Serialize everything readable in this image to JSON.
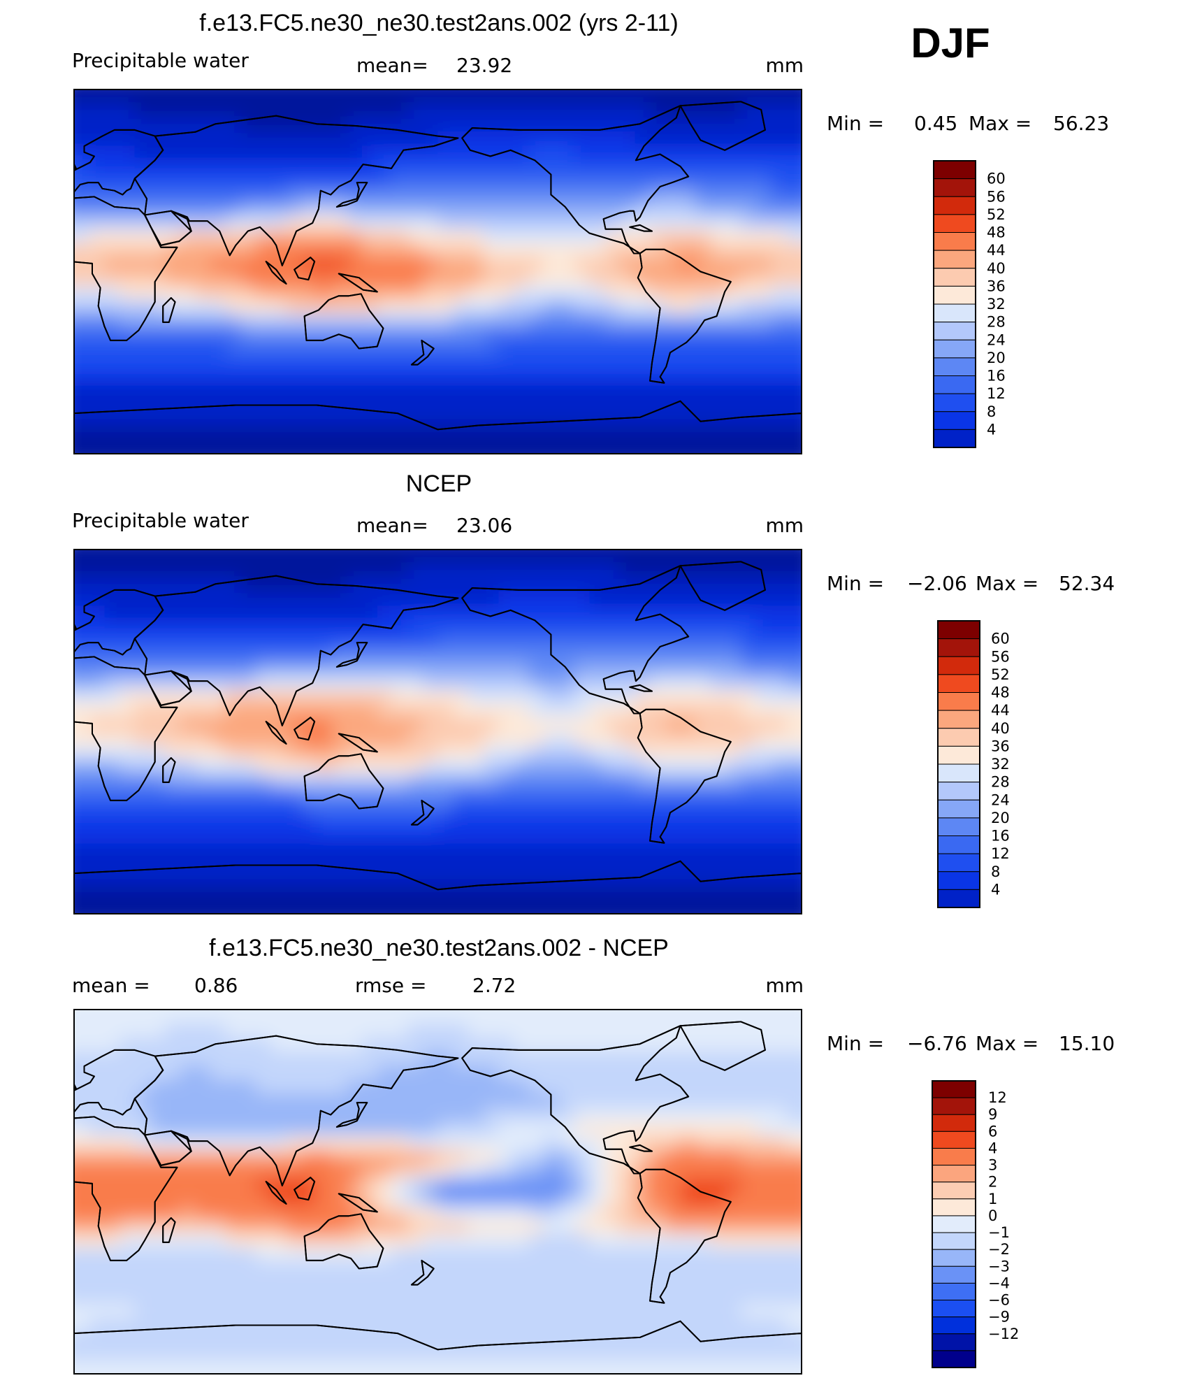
{
  "season": "DJF",
  "colors": {
    "pw_scale": [
      "#00008c",
      "#00139c",
      "#0022c8",
      "#0a35e6",
      "#1f4ff0",
      "#3a69f2",
      "#5d87f4",
      "#86a7f7",
      "#b3c8fb",
      "#d9e6fb",
      "#fde9d9",
      "#fccbb0",
      "#fba77e",
      "#f97c4b",
      "#ef4a1f",
      "#d22a0c",
      "#a3140a",
      "#7d0000"
    ],
    "diff_scale": [
      "#00008c",
      "#0013a8",
      "#0030dc",
      "#1b4ff2",
      "#3e6ff4",
      "#6a92f6",
      "#98b6f8",
      "#c3d6fb",
      "#e2ecfb",
      "#fde9d9",
      "#fccdb3",
      "#fba57e",
      "#f97c4b",
      "#ef4a1f",
      "#d22a0c",
      "#a3140a",
      "#7d0000"
    ]
  },
  "panels": [
    {
      "title": "f.e13.FC5.ne30_ne30.test2ans.002 (yrs 2-11)",
      "left_label": "Precipitable  water",
      "stat1_label": "mean=",
      "stat1_value": "23.92",
      "units": "mm",
      "minmax_min_label": "Min  =",
      "minmax_min": "0.45",
      "minmax_max_label": "Max  =",
      "minmax_max": "56.23"
    },
    {
      "title": "NCEP",
      "left_label": "Precipitable  water",
      "stat1_label": "mean=",
      "stat1_value": "23.06",
      "units": "mm",
      "minmax_min_label": "Min  =",
      "minmax_min": "−2.06",
      "minmax_max_label": "Max  =",
      "minmax_max": "52.34"
    },
    {
      "title": "f.e13.FC5.ne30_ne30.test2ans.002 - NCEP",
      "stat1_label": "mean  =",
      "stat1_value": "0.86",
      "stat2_label": "rmse  =",
      "stat2_value": "2.72",
      "units": "mm",
      "minmax_min_label": "Min  =",
      "minmax_min": "−6.76",
      "minmax_max_label": "Max  =",
      "minmax_max": "15.10"
    }
  ],
  "chart_data": [
    {
      "type": "heatmap",
      "title": "f.e13.FC5.ne30_ne30.test2ans.002 (yrs 2-11)",
      "variable": "Precipitable  water",
      "units": "mm",
      "mean": 23.92,
      "min": 0.45,
      "max": 56.23,
      "colorbar_levels": [
        "60",
        "56",
        "52",
        "48",
        "44",
        "40",
        "36",
        "32",
        "28",
        "24",
        "20",
        "16",
        "12",
        "8",
        "4"
      ],
      "grid": {
        "lat": [
          90,
          75,
          60,
          45,
          30,
          15,
          0,
          -15,
          -30,
          -45,
          -60,
          -75,
          -90
        ],
        "lon": [
          0,
          60,
          120,
          180,
          240,
          300,
          360
        ],
        "values": [
          [
            3,
            3,
            3,
            3,
            3,
            3,
            3
          ],
          [
            5,
            4,
            3,
            5,
            6,
            4,
            5
          ],
          [
            9,
            6,
            6,
            10,
            12,
            9,
            9
          ],
          [
            15,
            12,
            14,
            17,
            18,
            20,
            15
          ],
          [
            22,
            22,
            30,
            27,
            26,
            30,
            22
          ],
          [
            38,
            44,
            50,
            40,
            34,
            44,
            38
          ],
          [
            44,
            48,
            54,
            50,
            40,
            50,
            44
          ],
          [
            30,
            36,
            46,
            40,
            28,
            40,
            30
          ],
          [
            18,
            20,
            22,
            22,
            18,
            20,
            18
          ],
          [
            12,
            12,
            13,
            13,
            12,
            12,
            12
          ],
          [
            7,
            7,
            7,
            7,
            7,
            7,
            7
          ],
          [
            4,
            4,
            4,
            4,
            4,
            4,
            4
          ],
          [
            2,
            2,
            2,
            2,
            2,
            2,
            2
          ]
        ]
      }
    },
    {
      "type": "heatmap",
      "title": "NCEP",
      "variable": "Precipitable  water",
      "units": "mm",
      "mean": 23.06,
      "min": -2.06,
      "max": 52.34,
      "colorbar_levels": [
        "60",
        "56",
        "52",
        "48",
        "44",
        "40",
        "36",
        "32",
        "28",
        "24",
        "20",
        "16",
        "12",
        "8",
        "4"
      ],
      "grid": {
        "lat": [
          90,
          75,
          60,
          45,
          30,
          15,
          0,
          -15,
          -30,
          -45,
          -60,
          -75,
          -90
        ],
        "lon": [
          0,
          60,
          120,
          180,
          240,
          300,
          360
        ],
        "values": [
          [
            3,
            3,
            3,
            3,
            3,
            3,
            3
          ],
          [
            4,
            4,
            3,
            5,
            5,
            4,
            4
          ],
          [
            8,
            6,
            6,
            9,
            11,
            8,
            8
          ],
          [
            14,
            12,
            13,
            16,
            17,
            18,
            14
          ],
          [
            22,
            22,
            28,
            26,
            24,
            28,
            22
          ],
          [
            36,
            42,
            46,
            40,
            32,
            42,
            36
          ],
          [
            40,
            46,
            50,
            44,
            38,
            46,
            40
          ],
          [
            28,
            34,
            44,
            38,
            26,
            38,
            28
          ],
          [
            17,
            19,
            21,
            21,
            17,
            19,
            17
          ],
          [
            11,
            11,
            12,
            12,
            11,
            11,
            11
          ],
          [
            6,
            6,
            6,
            6,
            6,
            6,
            6
          ],
          [
            4,
            4,
            4,
            4,
            4,
            4,
            4
          ],
          [
            2,
            2,
            2,
            2,
            2,
            2,
            2
          ]
        ]
      }
    },
    {
      "type": "heatmap",
      "title": "f.e13.FC5.ne30_ne30.test2ans.002 - NCEP",
      "units": "mm",
      "mean": 0.86,
      "rmse": 2.72,
      "min": -6.76,
      "max": 15.1,
      "colorbar_levels": [
        "12",
        "9",
        "6",
        "4",
        "3",
        "2",
        "1",
        "0",
        "−1",
        "−2",
        "−3",
        "−4",
        "−6",
        "−9",
        "−12"
      ],
      "grid": {
        "lat": [
          90,
          75,
          60,
          45,
          30,
          15,
          0,
          -15,
          -30,
          -45,
          -60,
          -75,
          -90
        ],
        "lon": [
          0,
          60,
          120,
          180,
          240,
          300,
          360
        ],
        "values": [
          [
            0.5,
            0.5,
            0.5,
            0.5,
            0.5,
            0.5,
            0.5
          ],
          [
            0.5,
            -0.5,
            0.5,
            -0.5,
            0.5,
            0.5,
            0.5
          ],
          [
            -0.5,
            -1,
            -0.5,
            -1.5,
            -0.5,
            -1,
            -0.5
          ],
          [
            -0.5,
            -1.5,
            -1,
            -2,
            -1,
            -1,
            -0.5
          ],
          [
            0.5,
            -2,
            -1,
            -1,
            1,
            2,
            0.5
          ],
          [
            4,
            4,
            5,
            4,
            -2,
            5,
            4
          ],
          [
            6,
            6,
            7,
            -4,
            -3,
            7,
            6
          ],
          [
            4,
            3,
            5,
            3,
            1,
            4,
            4
          ],
          [
            -0.5,
            -1,
            1,
            -0.5,
            -1,
            -1,
            -0.5
          ],
          [
            -0.5,
            -1,
            -1,
            -0.5,
            -1,
            -1,
            -0.5
          ],
          [
            0.5,
            -0.5,
            -0.5,
            -0.5,
            -0.5,
            -0.5,
            0.5
          ],
          [
            -0.5,
            -0.5,
            -0.5,
            -0.5,
            -0.5,
            -0.5,
            -0.5
          ],
          [
            0.5,
            0.5,
            0.5,
            0.5,
            0.5,
            0.5,
            0.5
          ]
        ]
      }
    }
  ]
}
